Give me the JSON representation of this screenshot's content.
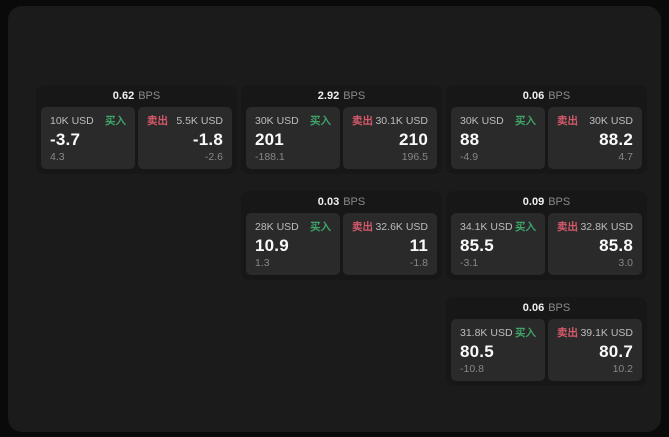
{
  "labels": {
    "bps_unit": "BPS",
    "buy": "买入",
    "sell": "卖出"
  },
  "colors": {
    "buy_green": "#3fa368",
    "sell_red": "#d4596a",
    "window_bg": "#1b1b1c",
    "card_bg": "#171718",
    "panel_bg": "#2a2a2b",
    "page_bg": "#0a0a0a"
  },
  "cards": [
    {
      "bps": "0.62",
      "buy": {
        "size": "10K USD",
        "value": "-3.7",
        "delta": "4.3"
      },
      "sell": {
        "size": "5.5K USD",
        "value": "-1.8",
        "delta": "-2.6"
      }
    },
    {
      "bps": "2.92",
      "buy": {
        "size": "30K USD",
        "value": "201",
        "delta": "-188.1"
      },
      "sell": {
        "size": "30.1K USD",
        "value": "210",
        "delta": "196.5"
      }
    },
    {
      "bps": "0.06",
      "buy": {
        "size": "30K USD",
        "value": "88",
        "delta": "-4.9"
      },
      "sell": {
        "size": "30K USD",
        "value": "88.2",
        "delta": "4.7"
      }
    },
    {
      "bps": "0.03",
      "buy": {
        "size": "28K USD",
        "value": "10.9",
        "delta": "1.3"
      },
      "sell": {
        "size": "32.6K USD",
        "value": "11",
        "delta": "-1.8"
      }
    },
    {
      "bps": "0.09",
      "buy": {
        "size": "34.1K USD",
        "value": "85.5",
        "delta": "-3.1"
      },
      "sell": {
        "size": "32.8K USD",
        "value": "85.8",
        "delta": "3.0"
      }
    },
    {
      "bps": "0.06",
      "buy": {
        "size": "31.8K USD",
        "value": "80.5",
        "delta": "-10.8"
      },
      "sell": {
        "size": "39.1K USD",
        "value": "80.7",
        "delta": "10.2"
      }
    }
  ]
}
